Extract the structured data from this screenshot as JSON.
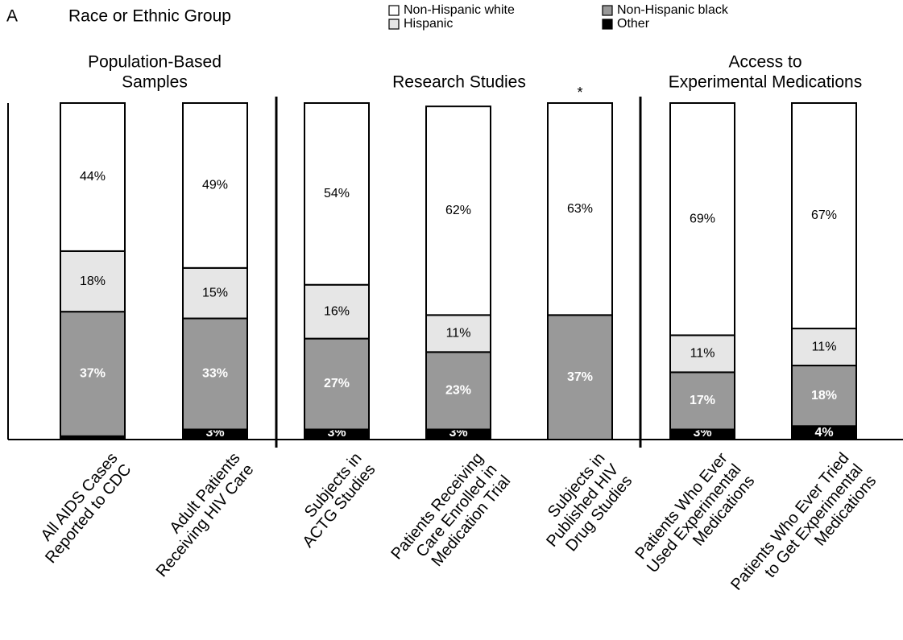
{
  "chart_data": {
    "type": "stacked_bar",
    "panel_label": "A",
    "title": "Race or Ethnic Group",
    "groups": [
      [
        "Population-Based",
        "Samples"
      ],
      [
        "Research Studies"
      ],
      [
        "Access to",
        "Experimental Medications"
      ]
    ],
    "annotation": "*",
    "categories": [
      [
        "All AIDS Cases",
        "Reported to CDC"
      ],
      [
        "Adult Patients",
        "Receiving HIV Care"
      ],
      [
        "Subjects in",
        "ACTG Studies"
      ],
      [
        "Patients Receiving",
        "Care Enrolled in",
        "Medication Trial"
      ],
      [
        "Subjects in",
        "Published HIV",
        "Drug Studies"
      ],
      [
        "Patients Who Ever",
        "Used Experimental",
        "Medications"
      ],
      [
        "Patients Who Ever Tried",
        "to Get Experimental",
        "Medications"
      ]
    ],
    "ylim": [
      0,
      100
    ],
    "series": [
      {
        "name": "Other",
        "color": "#000000",
        "values": [
          1,
          3,
          3,
          3,
          null,
          3,
          4
        ],
        "value_labels": [
          "1%",
          "3%",
          "3%",
          "3%",
          null,
          "3%",
          "4%"
        ]
      },
      {
        "name": "Non-Hispanic black",
        "color": "#999999",
        "values": [
          37,
          33,
          27,
          23,
          37,
          17,
          18
        ],
        "value_labels": [
          "37%",
          "33%",
          "27%",
          "23%",
          "37%",
          "17%",
          "18%"
        ]
      },
      {
        "name": "Hispanic",
        "color": "#e6e6e6",
        "values": [
          18,
          15,
          16,
          11,
          null,
          11,
          11
        ],
        "value_labels": [
          "18%",
          "15%",
          "16%",
          "11%",
          null,
          "11%",
          "11%"
        ]
      },
      {
        "name": "Non-Hispanic white",
        "color": "#ffffff",
        "values": [
          44,
          49,
          54,
          62,
          63,
          69,
          67
        ],
        "value_labels": [
          "44%",
          "49%",
          "54%",
          "62%",
          "63%",
          "69%",
          "67%"
        ]
      }
    ]
  }
}
